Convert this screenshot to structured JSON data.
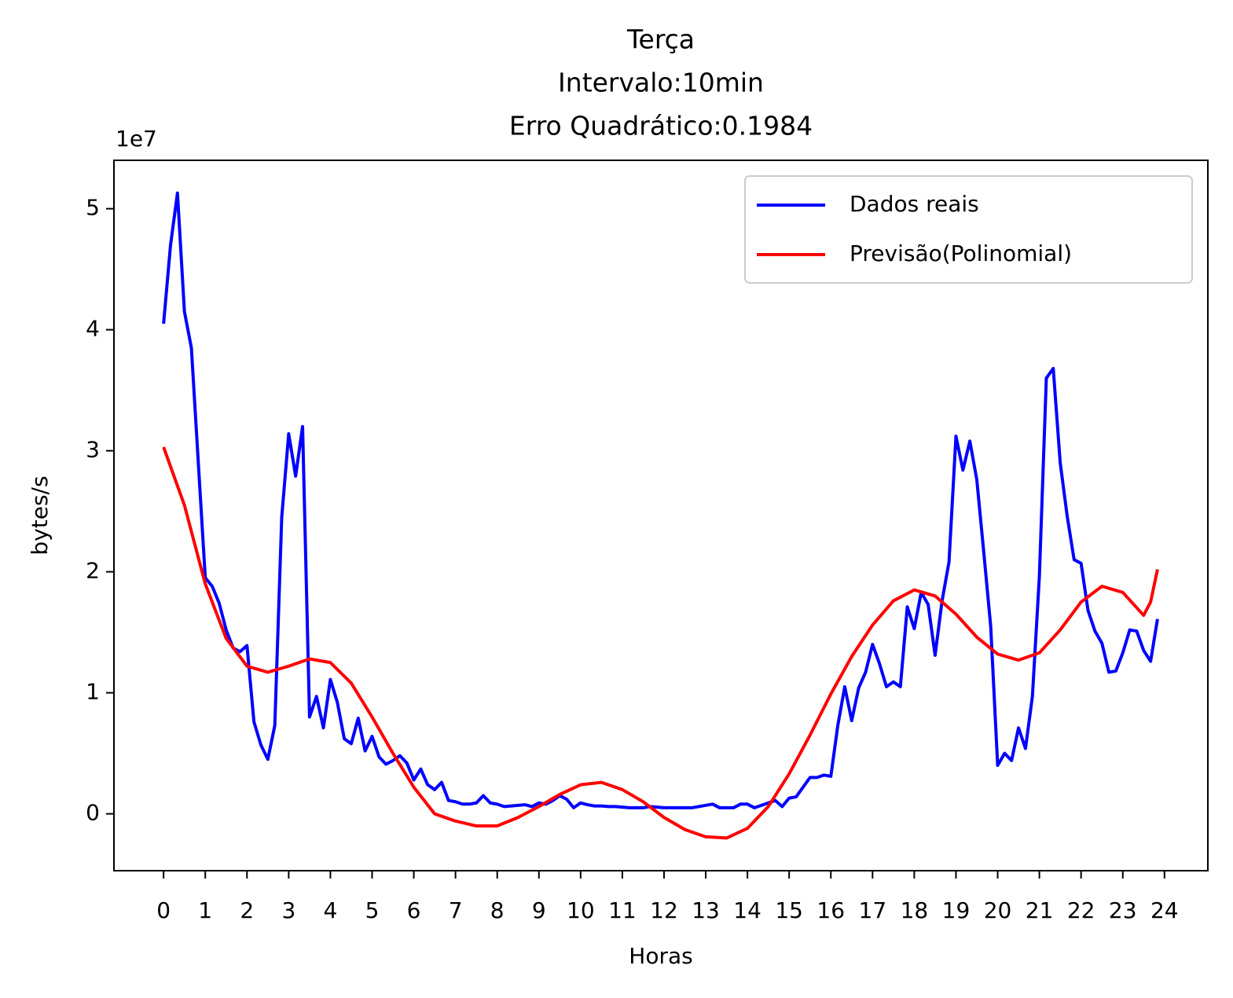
{
  "chart_data": {
    "type": "line",
    "title": [
      "Terça",
      "Intervalo:10min",
      "Erro Quadrático:0.1984"
    ],
    "x_label": "Horas",
    "y_label": "bytes/s",
    "y_offset_label": "1e7",
    "xlim": [
      -1.19,
      25.04
    ],
    "ylim": [
      -0.47,
      5.4
    ],
    "xticks": [
      0,
      1,
      2,
      3,
      4,
      5,
      6,
      7,
      8,
      9,
      10,
      11,
      12,
      13,
      14,
      15,
      16,
      17,
      18,
      19,
      20,
      21,
      22,
      23,
      24
    ],
    "yticks": [
      0,
      1,
      2,
      3,
      4,
      5
    ],
    "legend": "upper right",
    "series": [
      {
        "name": "Dados reais",
        "color": "#0000ff",
        "x": [
          0,
          0.167,
          0.333,
          0.5,
          0.667,
          0.833,
          1,
          1.167,
          1.333,
          1.5,
          1.667,
          1.833,
          2,
          2.167,
          2.333,
          2.5,
          2.667,
          2.833,
          3,
          3.167,
          3.333,
          3.5,
          3.667,
          3.833,
          4,
          4.167,
          4.333,
          4.5,
          4.667,
          4.833,
          5,
          5.167,
          5.333,
          5.5,
          5.667,
          5.833,
          6,
          6.167,
          6.333,
          6.5,
          6.667,
          6.833,
          7,
          7.167,
          7.333,
          7.5,
          7.667,
          7.833,
          8,
          8.167,
          8.333,
          8.5,
          8.667,
          8.833,
          9,
          9.167,
          9.333,
          9.5,
          9.667,
          9.833,
          10,
          10.167,
          10.333,
          10.5,
          10.667,
          10.833,
          11,
          11.167,
          11.333,
          11.5,
          11.667,
          11.833,
          12,
          12.167,
          12.333,
          12.5,
          12.667,
          12.833,
          13,
          13.167,
          13.333,
          13.5,
          13.667,
          13.833,
          14,
          14.167,
          14.333,
          14.5,
          14.667,
          14.833,
          15,
          15.167,
          15.333,
          15.5,
          15.667,
          15.833,
          16,
          16.167,
          16.333,
          16.5,
          16.667,
          16.833,
          17,
          17.167,
          17.333,
          17.5,
          17.667,
          17.833,
          18,
          18.167,
          18.333,
          18.5,
          18.667,
          18.833,
          19,
          19.167,
          19.333,
          19.5,
          19.667,
          19.833,
          20,
          20.167,
          20.333,
          20.5,
          20.667,
          20.833,
          21,
          21.167,
          21.333,
          21.5,
          21.667,
          21.833,
          22,
          22.167,
          22.333,
          22.5,
          22.667,
          22.833,
          23,
          23.167,
          23.333,
          23.5,
          23.667,
          23.833
        ],
        "values": [
          4.05,
          4.7,
          5.13,
          4.15,
          3.85,
          2.9,
          1.95,
          1.88,
          1.74,
          1.52,
          1.37,
          1.34,
          1.39,
          0.76,
          0.57,
          0.45,
          0.73,
          2.45,
          3.14,
          2.79,
          3.2,
          0.8,
          0.97,
          0.71,
          1.11,
          0.92,
          0.62,
          0.58,
          0.79,
          0.52,
          0.64,
          0.47,
          0.41,
          0.44,
          0.48,
          0.42,
          0.28,
          0.37,
          0.24,
          0.2,
          0.26,
          0.11,
          0.1,
          0.08,
          0.08,
          0.09,
          0.15,
          0.09,
          0.08,
          0.06,
          0.065,
          0.07,
          0.075,
          0.06,
          0.09,
          0.08,
          0.11,
          0.15,
          0.12,
          0.05,
          0.09,
          0.075,
          0.065,
          0.065,
          0.06,
          0.06,
          0.055,
          0.05,
          0.05,
          0.05,
          0.06,
          0.055,
          0.05,
          0.05,
          0.05,
          0.05,
          0.05,
          0.06,
          0.07,
          0.08,
          0.05,
          0.05,
          0.05,
          0.08,
          0.08,
          0.05,
          0.07,
          0.09,
          0.11,
          0.06,
          0.13,
          0.14,
          0.22,
          0.3,
          0.3,
          0.32,
          0.31,
          0.73,
          1.05,
          0.77,
          1.04,
          1.17,
          1.4,
          1.24,
          1.05,
          1.09,
          1.05,
          1.71,
          1.53,
          1.83,
          1.73,
          1.31,
          1.76,
          2.08,
          3.12,
          2.84,
          3.08,
          2.76,
          2.16,
          1.55,
          0.4,
          0.5,
          0.44,
          0.71,
          0.54,
          0.97,
          1.96,
          3.6,
          3.68,
          2.9,
          2.46,
          2.1,
          2.07,
          1.68,
          1.51,
          1.41,
          1.17,
          1.18,
          1.33,
          1.52,
          1.51,
          1.35,
          1.26,
          1.61
        ]
      },
      {
        "name": "Previsão(Polinomial)",
        "color": "#ff0000",
        "x": [
          0,
          0.5,
          1,
          1.5,
          2,
          2.5,
          3,
          3.5,
          4,
          4.5,
          5,
          5.5,
          6,
          6.5,
          7,
          7.5,
          8,
          8.5,
          9,
          9.5,
          10,
          10.5,
          11,
          11.5,
          12,
          12.5,
          13,
          13.5,
          14,
          14.5,
          15,
          15.5,
          16,
          16.5,
          17,
          17.5,
          18,
          18.5,
          19,
          19.5,
          20,
          20.5,
          21,
          21.5,
          22,
          22.5,
          23,
          23.5,
          23.667,
          23.833
        ],
        "values": [
          3.03,
          2.55,
          1.9,
          1.45,
          1.22,
          1.17,
          1.22,
          1.28,
          1.25,
          1.08,
          0.8,
          0.5,
          0.22,
          0.0,
          -0.06,
          -0.1,
          -0.1,
          -0.03,
          0.06,
          0.16,
          0.24,
          0.26,
          0.2,
          0.1,
          -0.03,
          -0.13,
          -0.19,
          -0.2,
          -0.12,
          0.06,
          0.33,
          0.65,
          0.99,
          1.3,
          1.56,
          1.76,
          1.85,
          1.8,
          1.65,
          1.46,
          1.32,
          1.27,
          1.33,
          1.52,
          1.75,
          1.88,
          1.83,
          1.64,
          1.75,
          2.02
        ]
      }
    ]
  }
}
